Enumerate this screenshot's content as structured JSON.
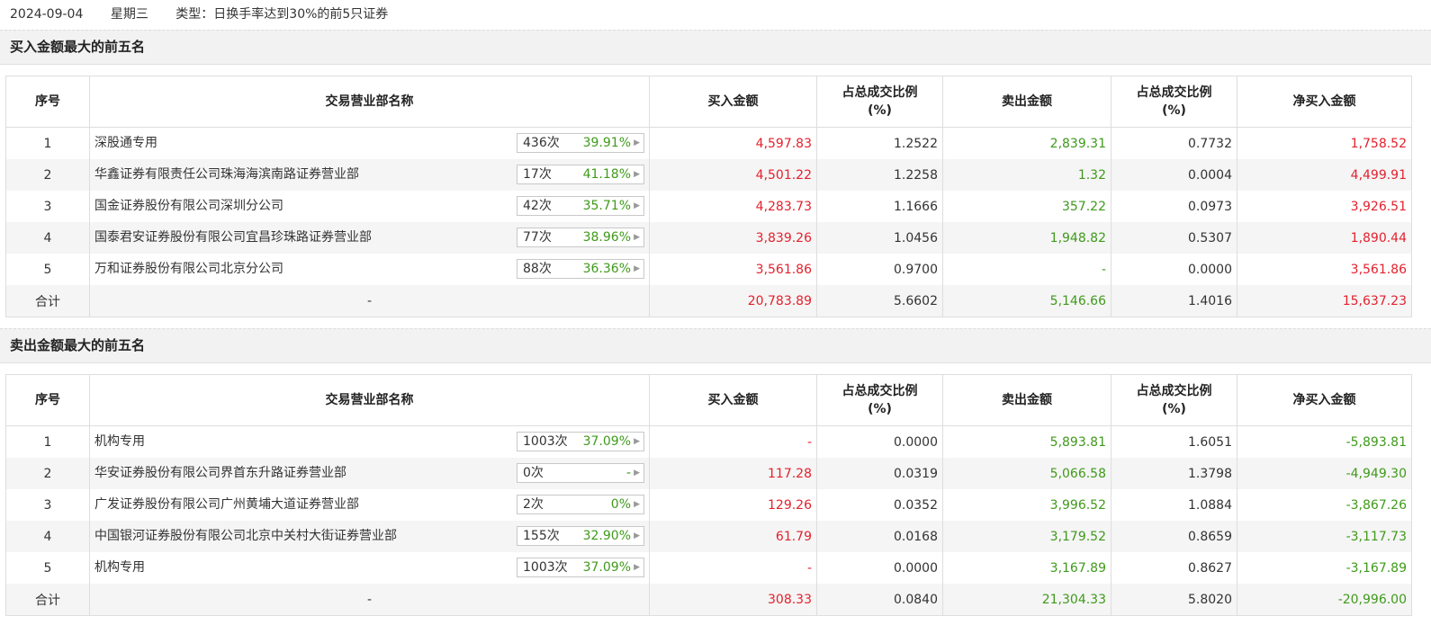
{
  "header": {
    "date": "2024-09-04",
    "weekday": "星期三",
    "type": "类型：日换手率达到30%的前5只证券"
  },
  "columns": [
    "序号",
    "交易营业部名称",
    "买入金额",
    "占总成交比例",
    "(%)",
    "卖出金额",
    "占总成交比例",
    "(%)",
    "净买入金额"
  ],
  "buy_section": {
    "title": "买入金额最大的前五名",
    "rows": [
      {
        "idx": "1",
        "name": "深股通专用",
        "count": "436次",
        "rate": "39.91%",
        "buy": "4,597.83",
        "buy_pct": "1.2522",
        "sell": "2,839.31",
        "sell_pct": "0.7732",
        "net": "1,758.52"
      },
      {
        "idx": "2",
        "name": "华鑫证券有限责任公司珠海海滨南路证券营业部",
        "count": "17次",
        "rate": "41.18%",
        "buy": "4,501.22",
        "buy_pct": "1.2258",
        "sell": "1.32",
        "sell_pct": "0.0004",
        "net": "4,499.91"
      },
      {
        "idx": "3",
        "name": "国金证券股份有限公司深圳分公司",
        "count": "42次",
        "rate": "35.71%",
        "buy": "4,283.73",
        "buy_pct": "1.1666",
        "sell": "357.22",
        "sell_pct": "0.0973",
        "net": "3,926.51"
      },
      {
        "idx": "4",
        "name": "国泰君安证券股份有限公司宜昌珍珠路证券营业部",
        "count": "77次",
        "rate": "38.96%",
        "buy": "3,839.26",
        "buy_pct": "1.0456",
        "sell": "1,948.82",
        "sell_pct": "0.5307",
        "net": "1,890.44"
      },
      {
        "idx": "5",
        "name": "万和证券股份有限公司北京分公司",
        "count": "88次",
        "rate": "36.36%",
        "buy": "3,561.86",
        "buy_pct": "0.9700",
        "sell": "-",
        "sell_pct": "0.0000",
        "net": "3,561.86"
      }
    ],
    "total": {
      "label": "合计",
      "name": "-",
      "buy": "20,783.89",
      "buy_pct": "5.6602",
      "sell": "5,146.66",
      "sell_pct": "1.4016",
      "net": "15,637.23"
    }
  },
  "sell_section": {
    "title": "卖出金额最大的前五名",
    "rows": [
      {
        "idx": "1",
        "name": "机构专用",
        "count": "1003次",
        "rate": "37.09%",
        "buy": "-",
        "buy_pct": "0.0000",
        "sell": "5,893.81",
        "sell_pct": "1.6051",
        "net": "-5,893.81"
      },
      {
        "idx": "2",
        "name": "华安证券股份有限公司界首东升路证券营业部",
        "count": "0次",
        "rate": "-",
        "buy": "117.28",
        "buy_pct": "0.0319",
        "sell": "5,066.58",
        "sell_pct": "1.3798",
        "net": "-4,949.30"
      },
      {
        "idx": "3",
        "name": "广发证券股份有限公司广州黄埔大道证券营业部",
        "count": "2次",
        "rate": "0%",
        "buy": "129.26",
        "buy_pct": "0.0352",
        "sell": "3,996.52",
        "sell_pct": "1.0884",
        "net": "-3,867.26"
      },
      {
        "idx": "4",
        "name": "中国银河证券股份有限公司北京中关村大街证券营业部",
        "count": "155次",
        "rate": "32.90%",
        "buy": "61.79",
        "buy_pct": "0.0168",
        "sell": "3,179.52",
        "sell_pct": "0.8659",
        "net": "-3,117.73"
      },
      {
        "idx": "5",
        "name": "机构专用",
        "count": "1003次",
        "rate": "37.09%",
        "buy": "-",
        "buy_pct": "0.0000",
        "sell": "3,167.89",
        "sell_pct": "0.8627",
        "net": "-3,167.89"
      }
    ],
    "total": {
      "label": "合计",
      "name": "-",
      "buy": "308.33",
      "buy_pct": "0.0840",
      "sell": "21,304.33",
      "sell_pct": "5.8020",
      "net": "-20,996.00"
    }
  },
  "colors": {
    "buy": "#e4212d",
    "sell": "#3f9a1b",
    "rate": "#3f9a1b"
  },
  "icons": {
    "stat_arrow": "triangle-right-icon"
  }
}
